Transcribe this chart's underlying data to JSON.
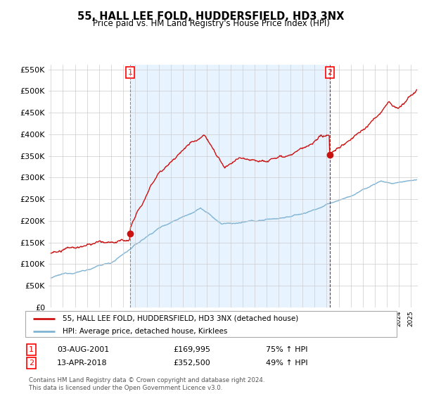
{
  "title": "55, HALL LEE FOLD, HUDDERSFIELD, HD3 3NX",
  "subtitle": "Price paid vs. HM Land Registry's House Price Index (HPI)",
  "legend_line1": "55, HALL LEE FOLD, HUDDERSFIELD, HD3 3NX (detached house)",
  "legend_line2": "HPI: Average price, detached house, Kirklees",
  "transaction1_date": "03-AUG-2001",
  "transaction1_price": "£169,995",
  "transaction1_hpi": "75% ↑ HPI",
  "transaction2_date": "13-APR-2018",
  "transaction2_price": "£352,500",
  "transaction2_hpi": "49% ↑ HPI",
  "footer": "Contains HM Land Registry data © Crown copyright and database right 2024.\nThis data is licensed under the Open Government Licence v3.0.",
  "hpi_color": "#7fb3d3",
  "price_color": "#cc1111",
  "marker1_x": 2001.6,
  "marker1_y": 169995,
  "marker2_x": 2018.27,
  "marker2_y": 352500,
  "ylim": [
    0,
    560000
  ],
  "xlim_start": 1994.8,
  "xlim_end": 2025.6,
  "bg_fill_color": "#ddeeff",
  "grid_color": "#cccccc"
}
